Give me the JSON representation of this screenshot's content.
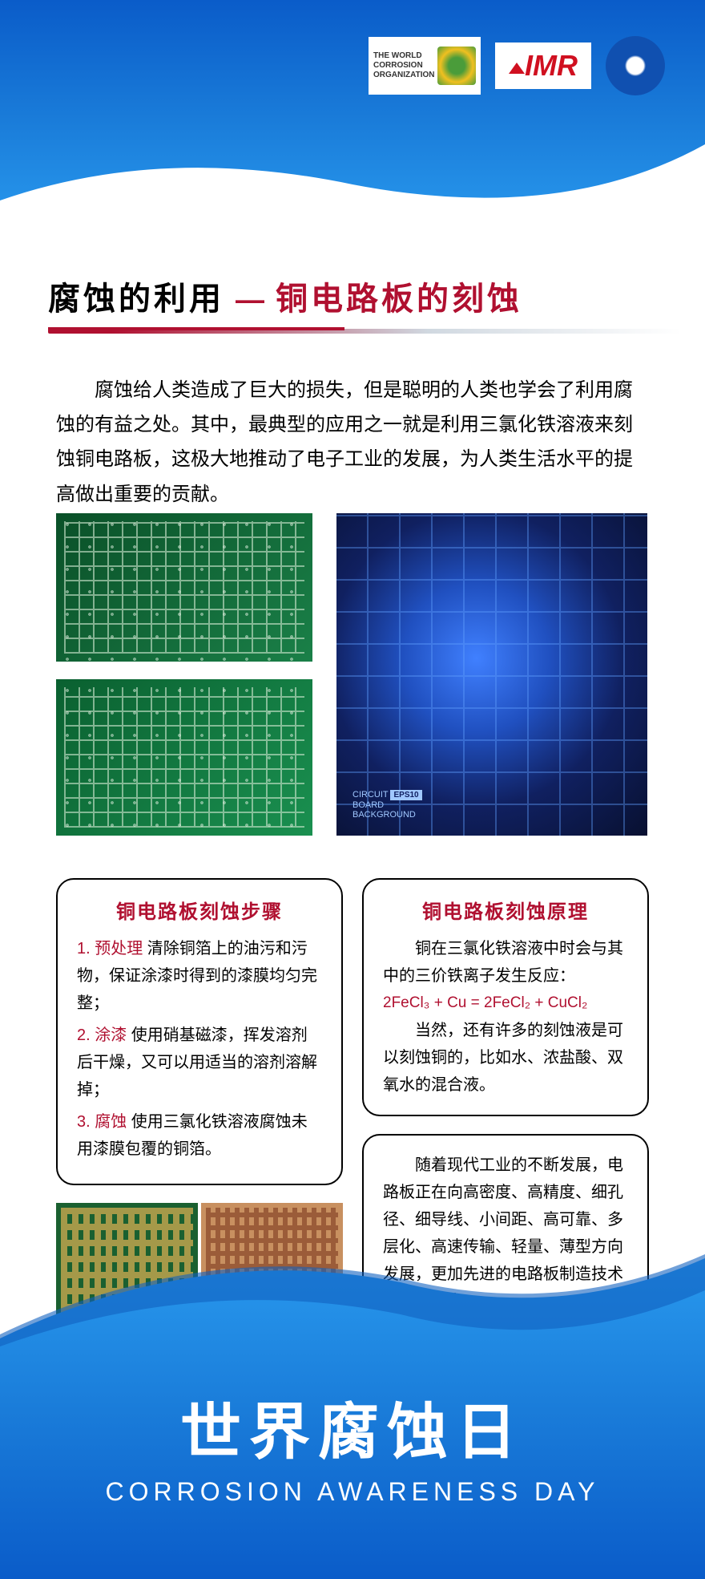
{
  "colors": {
    "banner_gradient_top": "#0a5cc9",
    "banner_gradient_bottom": "#2a9cf0",
    "accent_red": "#b01030",
    "text_black": "#000000",
    "pcb_green": "#1a8048",
    "circuit_blue": "#102060",
    "box_border": "#000000"
  },
  "logos": {
    "wco": {
      "line1": "THE WORLD",
      "line2": "CORROSION",
      "line3": "ORGANIZATION"
    },
    "imr": {
      "text": "IMR"
    }
  },
  "title": {
    "part1": "腐蚀的利用",
    "dash": "—",
    "part2": "铜电路板的刻蚀"
  },
  "intro": "腐蚀给人类造成了巨大的损失，但是聪明的人类也学会了利用腐蚀的有益之处。其中，最典型的应用之一就是利用三氯化铁溶液来刻蚀铜电路板，这极大地推动了电子工业的发展，为人类生活水平的提高做出重要的贡献。",
  "circuit_label": {
    "l1": "CIRCUIT",
    "l2": "BOARD",
    "l3": "BACKGROUND",
    "eps": "EPS10"
  },
  "steps_box": {
    "title": "铜电路板刻蚀步骤",
    "steps": [
      {
        "num": "1.",
        "label": "预处理",
        "text": " 清除铜箔上的油污和污物，保证涂漆时得到的漆膜均匀完整；"
      },
      {
        "num": "2.",
        "label": "涂漆",
        "text": " 使用硝基磁漆，挥发溶剂后干燥，又可以用适当的溶剂溶解掉；"
      },
      {
        "num": "3.",
        "label": "腐蚀",
        "text": " 使用三氯化铁溶液腐蚀未用漆膜包覆的铜箔。"
      }
    ]
  },
  "principle_box": {
    "title": "铜电路板刻蚀原理",
    "text1": "铜在三氯化铁溶液中时会与其中的三价铁离子发生反应：",
    "formula": "2FeCl₃ + Cu = 2FeCl₂ + CuCl₂",
    "text2": "当然，还有许多的刻蚀液是可以刻蚀铜的，比如水、浓盐酸、双氧水的混合液。"
  },
  "trend_box": {
    "text": "随着现代工业的不断发展，电路板正在向高密度、高精度、细孔径、细导线、小间距、高可靠、多层化、高速传输、轻量、薄型方向发展，更加先进的电路板制造技术在不断产生。"
  },
  "footer": {
    "cn": "世界腐蚀日",
    "en": "CORROSION  AWARENESS DAY"
  }
}
